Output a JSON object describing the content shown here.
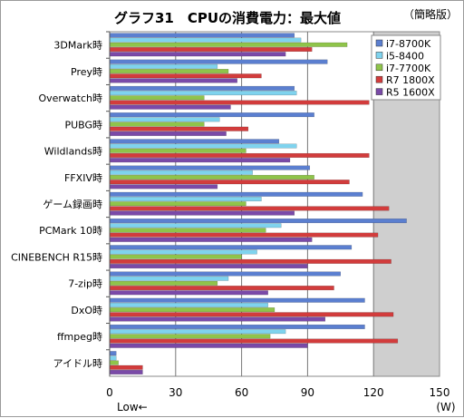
{
  "chart_data": {
    "type": "bar",
    "orientation": "horizontal",
    "title": "グラフ31　CPUの消費電力：最大値",
    "note": "（簡略版）",
    "x_unit": "(W)",
    "x_direction_note": "Low←",
    "xlim": [
      0,
      150
    ],
    "xticks": [
      0,
      30,
      60,
      90,
      120,
      150
    ],
    "grid": true,
    "legend_position": "top-right",
    "categories": [
      "3DMark時",
      "Prey時",
      "Overwatch時",
      "PUBG時",
      "Wildlands時",
      "FFXIV時",
      "ゲーム録画時",
      "PCMark 10時",
      "CINEBENCH R15時",
      "7-zip時",
      "DxO時",
      "ffmpeg時",
      "アイドル時"
    ],
    "series": [
      {
        "name": "i7-8700K",
        "color": "#5b7fd0",
        "values": [
          84,
          99,
          84,
          93,
          77,
          91,
          115,
          135,
          110,
          105,
          116,
          116,
          3
        ]
      },
      {
        "name": "i5-8400",
        "color": "#7fd3ee",
        "values": [
          87,
          49,
          85,
          50,
          85,
          65,
          69,
          78,
          67,
          54,
          72,
          80,
          3
        ]
      },
      {
        "name": "i7-7700K",
        "color": "#8fc44a",
        "values": [
          108,
          54,
          43,
          43,
          62,
          93,
          62,
          71,
          60,
          49,
          75,
          73,
          4
        ]
      },
      {
        "name": "R7 1800X",
        "color": "#d23c3c",
        "values": [
          92,
          69,
          118,
          63,
          118,
          109,
          127,
          122,
          128,
          102,
          129,
          131,
          15
        ]
      },
      {
        "name": "R5 1600X",
        "color": "#7a4aa8",
        "values": [
          80,
          58,
          55,
          53,
          82,
          49,
          84,
          92,
          90,
          72,
          98,
          90,
          15
        ]
      }
    ]
  }
}
